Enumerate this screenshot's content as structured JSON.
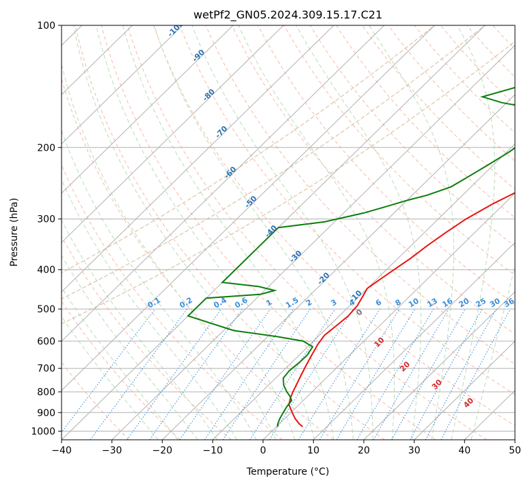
{
  "chart_data": {
    "type": "line",
    "subtype": "skew-t log-p diagram",
    "title": "wetPf2_GN05.2024.309.15.17.C21",
    "xlabel": "Temperature (°C)",
    "ylabel": "Pressure (hPa)",
    "xlim": [
      -40,
      50
    ],
    "ylim": [
      1050,
      100
    ],
    "y_scale": "log",
    "grid": true,
    "x_ticks": [
      -40,
      -30,
      -20,
      -10,
      0,
      10,
      20,
      30,
      40,
      50
    ],
    "y_ticks": [
      1000,
      900,
      800,
      700,
      600,
      500,
      400,
      300,
      200,
      100
    ],
    "isotherm_labels": [
      -100,
      -90,
      -80,
      -70,
      -60,
      -50,
      -40,
      -30,
      -20,
      -10
    ],
    "mixing_ratio_labels": [
      "0.1",
      "0.2",
      "0.4",
      "0.6",
      "1",
      "1.5",
      "2",
      "3",
      "4",
      "6",
      "8",
      "10",
      "13",
      "16",
      "20",
      "25",
      "30",
      "36"
    ],
    "mixing_ratio_values": [
      0.1,
      0.2,
      0.4,
      0.6,
      1,
      1.5,
      2,
      3,
      4,
      6,
      8,
      10,
      13,
      16,
      20,
      25,
      30,
      36
    ],
    "red_isotherm_labels": [
      0,
      10,
      20,
      30,
      40
    ],
    "series": [
      {
        "color": "#e8120e",
        "points": [
          [
            5.2,
            975
          ],
          [
            4,
            960
          ],
          [
            2,
            930
          ],
          [
            0,
            895
          ],
          [
            -2,
            860
          ],
          [
            -3,
            830
          ],
          [
            -3.8,
            800
          ],
          [
            -4.5,
            770
          ],
          [
            -5.5,
            730
          ],
          [
            -6.5,
            690
          ],
          [
            -7.5,
            650
          ],
          [
            -8.5,
            610
          ],
          [
            -9,
            580
          ],
          [
            -8.6,
            550
          ],
          [
            -8.2,
            520
          ],
          [
            -8.5,
            490
          ],
          [
            -9.3,
            465
          ],
          [
            -10,
            445
          ],
          [
            -9.4,
            425
          ],
          [
            -8.5,
            400
          ],
          [
            -7.5,
            375
          ],
          [
            -6.8,
            350
          ],
          [
            -5.8,
            325
          ],
          [
            -4.5,
            300
          ],
          [
            -2.2,
            275
          ],
          [
            0.8,
            252
          ],
          [
            4,
            230
          ],
          [
            7.5,
            210
          ],
          [
            10,
            195
          ],
          [
            13,
            180
          ],
          [
            16,
            165
          ],
          [
            19,
            150
          ],
          [
            22,
            137
          ],
          [
            24,
            125
          ],
          [
            25.5,
            115
          ],
          [
            27.5,
            107
          ],
          [
            28.8,
            101
          ]
        ]
      },
      {
        "color": "#0c7d0c",
        "points": [
          [
            0.2,
            975
          ],
          [
            -0.3,
            960
          ],
          [
            -1,
            930
          ],
          [
            -1.5,
            900
          ],
          [
            -2,
            870
          ],
          [
            -2.3,
            840
          ],
          [
            -3.5,
            820
          ],
          [
            -5,
            800
          ],
          [
            -7,
            770
          ],
          [
            -8.5,
            740
          ],
          [
            -8.8,
            710
          ],
          [
            -8.5,
            680
          ],
          [
            -8.4,
            650
          ],
          [
            -9,
            620
          ],
          [
            -12,
            600
          ],
          [
            -18,
            585
          ],
          [
            -28,
            565
          ],
          [
            -40,
            520
          ],
          [
            -40,
            470
          ],
          [
            -30,
            460
          ],
          [
            -28,
            450
          ],
          [
            -32,
            440
          ],
          [
            -40,
            430
          ],
          [
            -40,
            315
          ],
          [
            -32,
            305
          ],
          [
            -26,
            290
          ],
          [
            -23,
            280
          ],
          [
            -20,
            270
          ],
          [
            -17,
            262
          ],
          [
            -14,
            250
          ],
          [
            -13,
            240
          ],
          [
            -11,
            220
          ],
          [
            -9.5,
            205
          ],
          [
            -8.5,
            190
          ],
          [
            -7,
            180
          ],
          [
            -8,
            170
          ],
          [
            -14,
            160
          ],
          [
            -21,
            155
          ],
          [
            -26,
            150
          ],
          [
            -20,
            140
          ],
          [
            -15,
            130
          ],
          [
            -12,
            120
          ],
          [
            -9.2,
            110
          ],
          [
            -7,
            100
          ]
        ]
      }
    ]
  }
}
